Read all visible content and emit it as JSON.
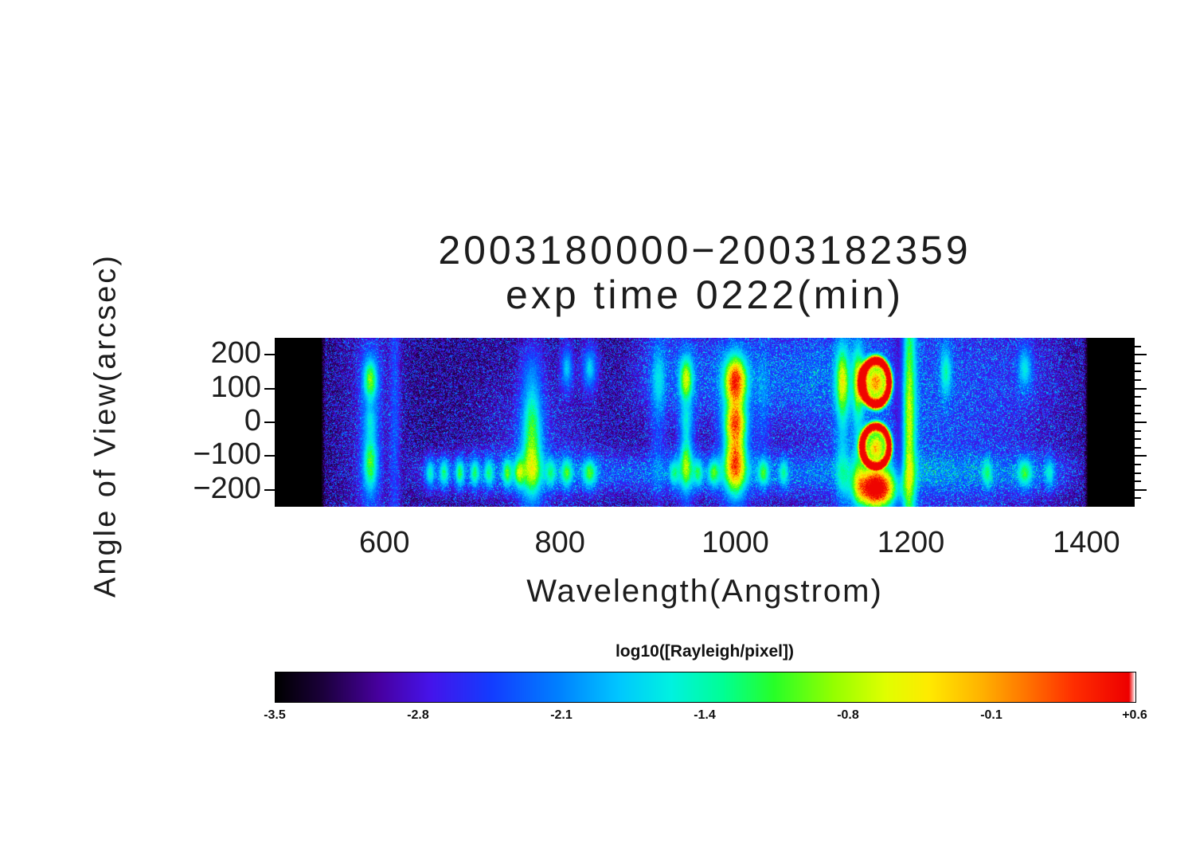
{
  "title": {
    "line1": "2003180000−2003182359",
    "line2": "exp time 0222(min)"
  },
  "axes": {
    "x": {
      "label": "Wavelength(Angstrom)",
      "tick_labels": [
        "600",
        "800",
        "1000",
        "1200",
        "1400"
      ],
      "tick_values": [
        600,
        800,
        1000,
        1200,
        1400
      ],
      "range": [
        475,
        1455
      ]
    },
    "y": {
      "label": "Angle of View(arcsec)",
      "tick_labels": [
        "200",
        "100",
        "0",
        "−100",
        "−200"
      ],
      "tick_values": [
        200,
        100,
        0,
        -100,
        -200
      ],
      "range": [
        250,
        -250
      ]
    }
  },
  "colorbar": {
    "label": "log10([Rayleigh/pixel])",
    "tick_labels": [
      "-3.5",
      "-2.8",
      "-2.1",
      "-1.4",
      "-0.8",
      "-0.1",
      "+0.6"
    ],
    "tick_values": [
      -3.5,
      -2.8,
      -2.1,
      -1.4,
      -0.8,
      -0.1,
      0.6
    ],
    "range": [
      -3.5,
      0.6
    ],
    "colormap": "rainbow",
    "saturation_marker_color": "#ffffff",
    "colormap_stops": [
      [
        0.0,
        0,
        0,
        0
      ],
      [
        0.055,
        28,
        0,
        60
      ],
      [
        0.12,
        72,
        0,
        160
      ],
      [
        0.18,
        70,
        20,
        235
      ],
      [
        0.25,
        20,
        60,
        255
      ],
      [
        0.33,
        0,
        130,
        255
      ],
      [
        0.4,
        0,
        200,
        255
      ],
      [
        0.46,
        0,
        242,
        225
      ],
      [
        0.52,
        0,
        255,
        150
      ],
      [
        0.58,
        40,
        255,
        40
      ],
      [
        0.65,
        150,
        255,
        0
      ],
      [
        0.71,
        225,
        255,
        0
      ],
      [
        0.76,
        255,
        235,
        0
      ],
      [
        0.82,
        255,
        180,
        0
      ],
      [
        0.875,
        255,
        115,
        0
      ],
      [
        0.93,
        255,
        45,
        0
      ],
      [
        0.993,
        238,
        0,
        0
      ],
      [
        1.0,
        255,
        255,
        255
      ]
    ]
  },
  "chart_data": {
    "type": "heatmap",
    "title": "2003180000−2003182359 exp time 0222(min)",
    "xlabel": "Wavelength(Angstrom)",
    "ylabel": "Angle of View(arcsec)",
    "value_label": "log10([Rayleigh/pixel])",
    "x_range_angstrom": [
      475,
      1455
    ],
    "y_range_arcsec": [
      250,
      -250
    ],
    "value_range_log10": [
      -3.5,
      0.6
    ],
    "data_coverage_angstrom": [
      528,
      1402
    ],
    "background_log10": -3.3,
    "dark_gap_angstrom": 1188,
    "emission_lines": [
      {
        "wavelength": 584,
        "width": 7,
        "intensity": 2.2,
        "profile": "dumbbell"
      },
      {
        "wavelength": 612,
        "width": 4,
        "intensity": 0.7,
        "profile": "col"
      },
      {
        "wavelength": 652,
        "width": 4,
        "intensity": 1.45,
        "profile": "spot"
      },
      {
        "wavelength": 668,
        "width": 4,
        "intensity": 1.55,
        "profile": "spot"
      },
      {
        "wavelength": 686,
        "width": 4,
        "intensity": 1.65,
        "profile": "spot"
      },
      {
        "wavelength": 703,
        "width": 4,
        "intensity": 1.55,
        "profile": "spot"
      },
      {
        "wavelength": 719,
        "width": 4,
        "intensity": 1.45,
        "profile": "spot"
      },
      {
        "wavelength": 740,
        "width": 4,
        "intensity": 1.65,
        "profile": "spot"
      },
      {
        "wavelength": 753,
        "width": 4,
        "intensity": 1.45,
        "profile": "spot"
      },
      {
        "wavelength": 768,
        "width": 9,
        "intensity": 2.1,
        "profile": "colbot"
      },
      {
        "wavelength": 790,
        "width": 4,
        "intensity": 1.2,
        "profile": "spot"
      },
      {
        "wavelength": 808,
        "width": 5,
        "intensity": 1.6,
        "profile": "topspot"
      },
      {
        "wavelength": 834,
        "width": 6,
        "intensity": 1.7,
        "profile": "topspot"
      },
      {
        "wavelength": 912,
        "width": 6,
        "intensity": 1.1,
        "profile": "topcol"
      },
      {
        "wavelength": 930,
        "width": 4,
        "intensity": 1.3,
        "profile": "spot"
      },
      {
        "wavelength": 944,
        "width": 6,
        "intensity": 2.2,
        "profile": "dumbbell"
      },
      {
        "wavelength": 958,
        "width": 4,
        "intensity": 1.4,
        "profile": "spot"
      },
      {
        "wavelength": 975,
        "width": 5,
        "intensity": 1.6,
        "profile": "spot"
      },
      {
        "wavelength": 1000,
        "width": 10,
        "intensity": 3.2,
        "profile": "dumbbell2"
      },
      {
        "wavelength": 1032,
        "width": 5,
        "intensity": 1.5,
        "profile": "spotcol"
      },
      {
        "wavelength": 1055,
        "width": 4,
        "intensity": 1.3,
        "profile": "spot"
      },
      {
        "wavelength": 1122,
        "width": 6,
        "intensity": 2.2,
        "profile": "topcol"
      },
      {
        "wavelength": 1140,
        "width": 5,
        "intensity": 2.0,
        "profile": "topcol"
      },
      {
        "wavelength": 1198,
        "width": 6,
        "intensity": 2.2,
        "profile": "col"
      },
      {
        "wavelength": 1240,
        "width": 5,
        "intensity": 1.4,
        "profile": "top"
      },
      {
        "wavelength": 1287,
        "width": 4,
        "intensity": 1.25,
        "profile": "spot"
      },
      {
        "wavelength": 1330,
        "width": 6,
        "intensity": 1.5,
        "profile": "topspot"
      },
      {
        "wavelength": 1358,
        "width": 4,
        "intensity": 1.1,
        "profile": "spot"
      }
    ],
    "bright_double_ring_feature": {
      "wavelength": 1160,
      "ring_semi_width_angstrom": 19,
      "ring_semi_height_arcsec": 80,
      "top_ring_center_arcsec": 118,
      "bottom_ring_center_arcsec": -72,
      "bottom_cap_center_arcsec": -200,
      "ring_peak_log10": 0.45,
      "interior_peak_log10": -0.6
    }
  }
}
